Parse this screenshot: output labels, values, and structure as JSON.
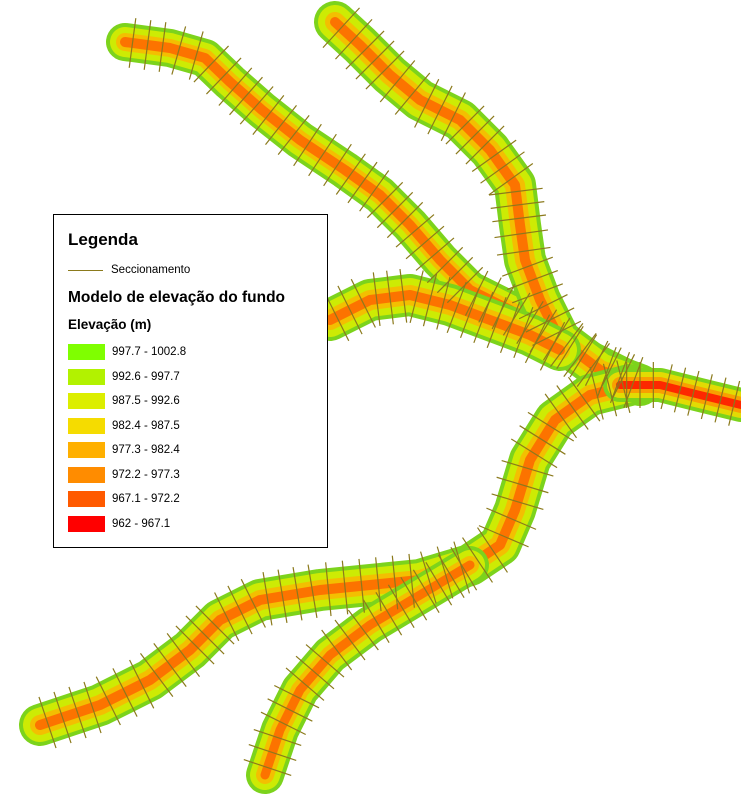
{
  "legend": {
    "title": "Legenda",
    "line_item": {
      "label": "Seccionamento",
      "color": "#8b7a1c"
    },
    "model_title": "Modelo de elevação do fundo",
    "elevation_title": "Elevação (m)",
    "classes": [
      {
        "label": "997.7 - 1002.8",
        "color": "#7fff00"
      },
      {
        "label": "992.6 - 997.7",
        "color": "#b2f200"
      },
      {
        "label": "987.5 - 992.6",
        "color": "#dcee00"
      },
      {
        "label": "982.4 - 987.5",
        "color": "#f5dc00"
      },
      {
        "label": "977.3 - 982.4",
        "color": "#ffb000"
      },
      {
        "label": "972.2 - 977.3",
        "color": "#ff8c00"
      },
      {
        "label": "967.1 - 972.2",
        "color": "#ff5a00"
      },
      {
        "label": "962 - 967.1",
        "color": "#ff0000"
      }
    ]
  },
  "map": {
    "section_line_color": "#8b7a1c",
    "shore_color": "#7cd31c"
  }
}
